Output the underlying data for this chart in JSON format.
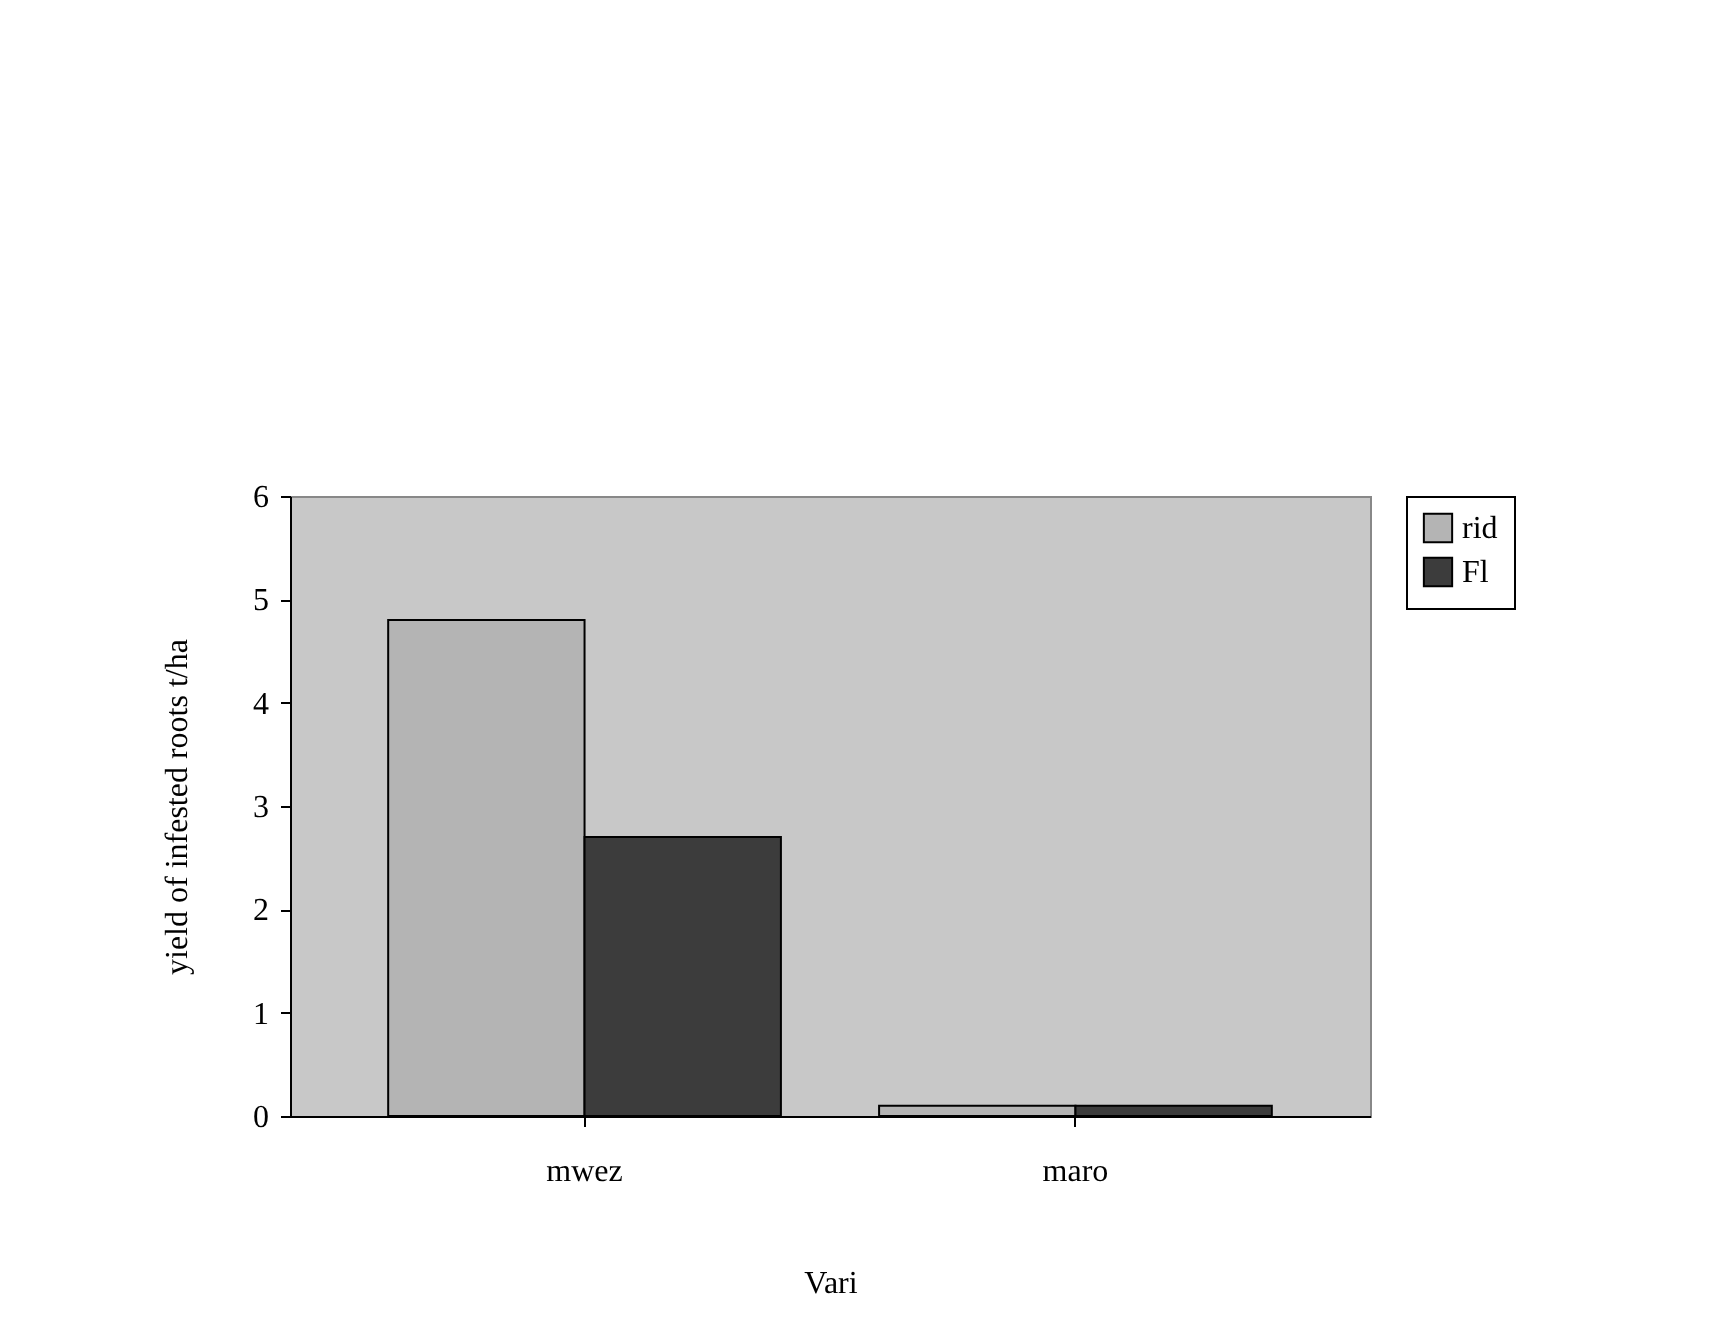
{
  "chart_data": {
    "type": "bar",
    "xlabel": "Vari",
    "ylabel": "yield of infested roots t/ha",
    "categories": [
      "mwez",
      "maro"
    ],
    "series": [
      {
        "name": "rid",
        "color": "#b4b4b4",
        "values": [
          4.8,
          0.1
        ]
      },
      {
        "name": "Fl",
        "color": "#3c3c3c",
        "values": [
          2.7,
          0.1
        ]
      }
    ],
    "ylim": [
      0,
      6
    ],
    "yticks": [
      0,
      1,
      2,
      3,
      4,
      5,
      6
    ],
    "grid": false,
    "legend": "top right"
  }
}
